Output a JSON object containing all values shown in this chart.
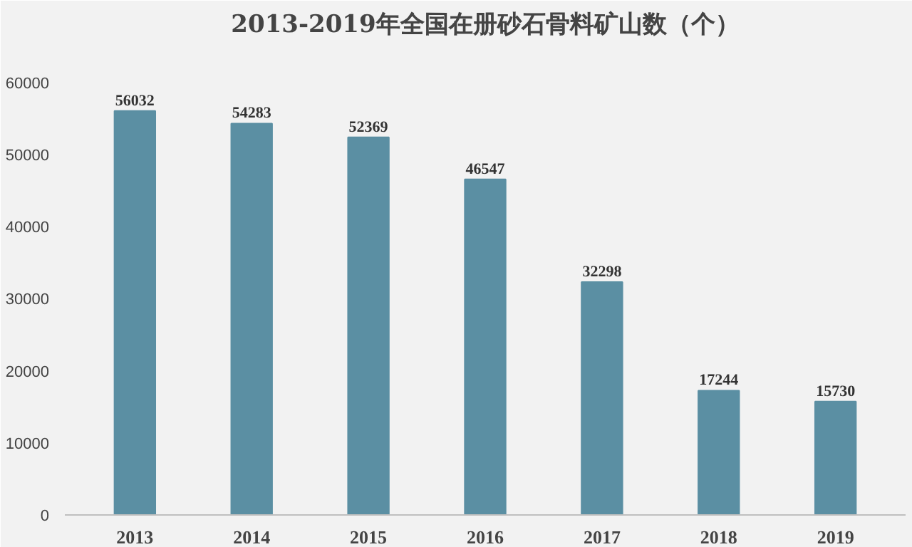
{
  "chart_data": {
    "type": "bar",
    "title": "2013-2019年全国在册砂石骨料矿山数（个）",
    "categories": [
      "2013",
      "2014",
      "2015",
      "2016",
      "2017",
      "2018",
      "2019"
    ],
    "values": [
      56032,
      54283,
      52369,
      46547,
      32298,
      17244,
      15730
    ],
    "color": "#5b8fa3",
    "data_labels": true,
    "grid": false,
    "ylim": [
      0,
      65000
    ],
    "yticks": [
      0,
      10000,
      20000,
      30000,
      40000,
      50000,
      60000
    ]
  }
}
